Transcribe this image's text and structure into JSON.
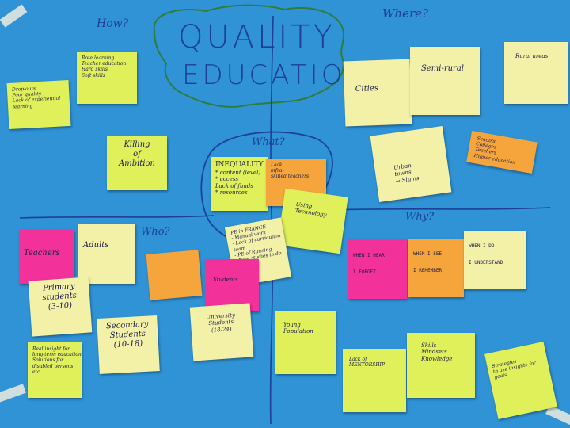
{
  "title": {
    "line1": "QUALITY",
    "line2": "EDUCATION"
  },
  "section_labels": {
    "how": "How?",
    "where": "Where?",
    "what": "What?",
    "who": "Who?",
    "why": "Why?"
  },
  "notes": {
    "drop_outs": [
      "Drop-outs",
      "Poor quality",
      "Lack of experiential",
      "learning"
    ],
    "rote_learning": [
      "Rote learning",
      "Teacher education",
      "Hard skills",
      "Soft skills"
    ],
    "killing_ambition": [
      "Killing",
      "of",
      "Ambition"
    ],
    "cities": [
      "Cities"
    ],
    "semi_rural": [
      "Semi-rural"
    ],
    "rural_areas": [
      "Rural areas"
    ],
    "urban_towns": [
      "Urban",
      "towns",
      "→ Slums"
    ],
    "schools_orange": [
      "Schools",
      "Colleges",
      "Teachers",
      "Higher education"
    ],
    "inequality": [
      "INEQUALITY",
      "* content (level)",
      "* access",
      "Lack of funds",
      "* resources"
    ],
    "orange_center": [
      "Lack",
      "infra-",
      "skilled teachers"
    ],
    "using_technology": [
      "Using",
      "Technology"
    ],
    "pe_in_france": [
      "PE in FRANCE",
      "- Manual work",
      "- Lack of curriculum",
      "team",
      "- PE of Running",
      "- New studies to do"
    ],
    "teachers": [
      "Teachers"
    ],
    "adults": [
      "Adults"
    ],
    "students_pink": [
      "Students"
    ],
    "primary_students": [
      "Primary",
      "students",
      "(3-10)"
    ],
    "secondary_students": [
      "Secondary",
      "Students",
      "(10-18)"
    ],
    "university_students": [
      "University",
      "Students",
      "(18-24)"
    ],
    "green_bottom_left": [
      "Real insight for",
      "long-term education",
      "Solutions for",
      "disabled persons",
      "etc"
    ],
    "young_population": [
      "Young",
      "Population"
    ],
    "lack_of_mentorship": [
      "Lack of",
      "MENTORSHIP"
    ],
    "skills_mindsets": [
      "Skills",
      "Mindsets",
      "Knowledge"
    ],
    "strategies": [
      "Strategies",
      "to use insights for",
      "goals"
    ],
    "when_i_hear": [
      "WHEN I HEAR",
      "I FORGET"
    ],
    "when_i_see": [
      "WHEN I SEE",
      "I REMEMBER"
    ],
    "when_i_do": [
      "WHEN I DO",
      "I UNDERSTAND"
    ]
  },
  "colors": {
    "board": "#2f93d6",
    "ink": "#1d3f9a",
    "yellow": "#dff05a",
    "pale": "#f3f0a8",
    "orange": "#f6a53c",
    "pink": "#f2319a"
  }
}
